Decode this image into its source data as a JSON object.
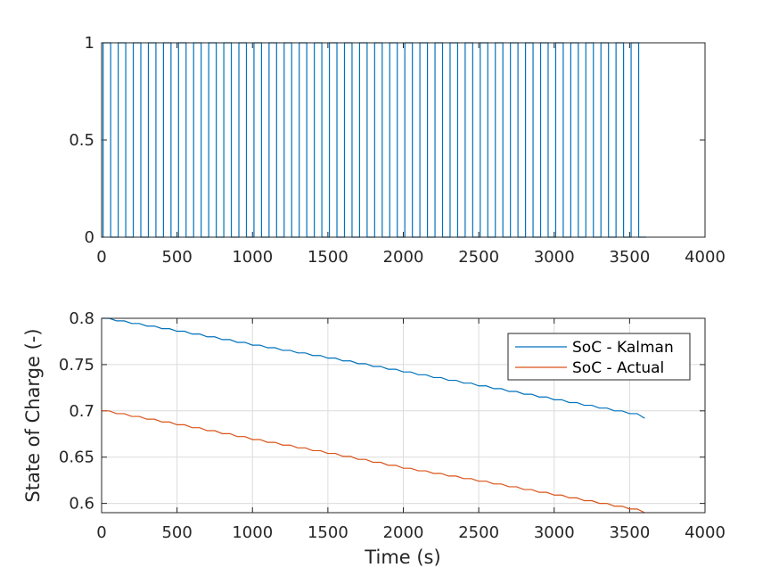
{
  "chart_data": [
    {
      "type": "line",
      "title": "",
      "xlabel": "",
      "ylabel": "",
      "xlim": [
        0,
        4000
      ],
      "ylim": [
        0,
        1
      ],
      "xticks": [
        0,
        500,
        1000,
        1500,
        2000,
        2500,
        3000,
        3500,
        4000
      ],
      "yticks": [
        0,
        0.5,
        1
      ],
      "yticklabels": [
        "0",
        "0.5",
        "1"
      ],
      "grid": false,
      "series": [
        {
          "color": "#0072BD",
          "period_s": 100,
          "on_duration_s": 50,
          "start_s": 10,
          "end_s": 3610,
          "high": 1,
          "low": 0
        }
      ]
    },
    {
      "type": "line",
      "title": "",
      "xlabel": "Time (s)",
      "ylabel": "State of Charge (-)",
      "xlim": [
        0,
        4000
      ],
      "ylim": [
        0.59,
        0.8
      ],
      "xticks": [
        0,
        500,
        1000,
        1500,
        2000,
        2500,
        3000,
        3500,
        4000
      ],
      "yticks": [
        0.6,
        0.65,
        0.7,
        0.75,
        0.8
      ],
      "yticklabels": [
        "0.6",
        "0.65",
        "0.7",
        "0.75",
        "0.8"
      ],
      "grid": true,
      "legend_position": "top-right",
      "series": [
        {
          "name": "SoC - Kalman",
          "color": "#0072BD",
          "x": [
            0,
            500,
            1000,
            1500,
            2000,
            2500,
            3000,
            3500,
            3600
          ],
          "y": [
            0.8,
            0.786,
            0.771,
            0.757,
            0.742,
            0.727,
            0.712,
            0.697,
            0.692
          ]
        },
        {
          "name": "SoC - Actual",
          "color": "#D95319",
          "x": [
            0,
            500,
            1000,
            1500,
            2000,
            2500,
            3000,
            3500,
            3600
          ],
          "y": [
            0.7,
            0.685,
            0.669,
            0.654,
            0.638,
            0.624,
            0.609,
            0.594,
            0.59
          ]
        }
      ]
    }
  ]
}
